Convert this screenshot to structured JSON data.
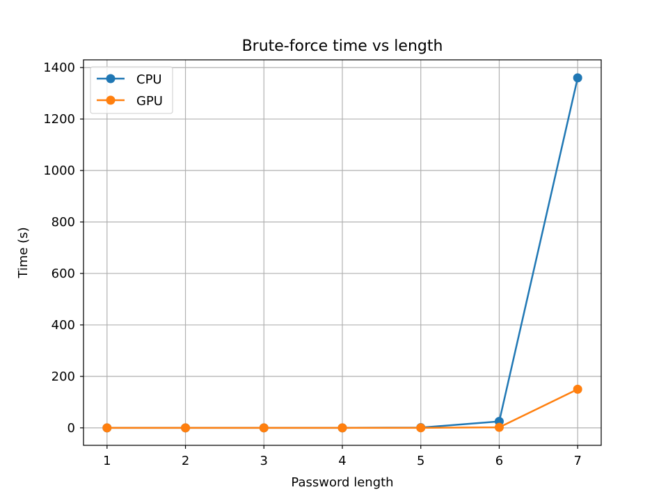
{
  "chart_data": {
    "type": "line",
    "title": "Brute-force time vs length",
    "xlabel": "Password length",
    "ylabel": "Time (s)",
    "x": [
      1,
      2,
      3,
      4,
      5,
      6,
      7
    ],
    "xticks": [
      "1",
      "2",
      "3",
      "4",
      "5",
      "6",
      "7"
    ],
    "yticks": [
      "0",
      "200",
      "400",
      "600",
      "800",
      "1000",
      "1200",
      "1400"
    ],
    "xlim": [
      0.7,
      7.3
    ],
    "ylim": [
      -68,
      1430
    ],
    "grid": true,
    "legend_position": "top-left",
    "series": [
      {
        "name": "CPU",
        "color": "#1f77b4",
        "marker": "circle",
        "values": [
          0,
          0,
          0,
          0.02,
          0.9,
          25,
          1360
        ]
      },
      {
        "name": "GPU",
        "color": "#ff7f0e",
        "marker": "circle",
        "values": [
          0,
          0,
          0,
          0,
          0.1,
          2,
          150
        ]
      }
    ]
  }
}
